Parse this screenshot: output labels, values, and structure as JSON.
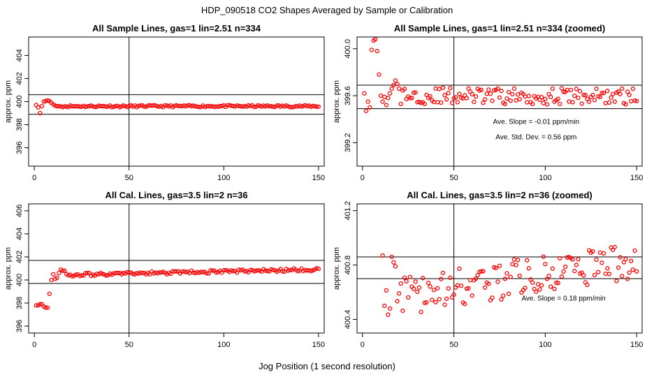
{
  "figure": {
    "title": "HDP_090518  CO2 Shapes Averaged by Sample or Calibration",
    "xlabel": "Jog Position (1 second resolution)"
  },
  "chart_data": [
    {
      "type": "scatter",
      "title": "All Sample Lines, gas=1 lin=2.51 n=334",
      "ylabel": "approx. ppm",
      "xlim": [
        -3,
        153
      ],
      "ylim": [
        394.4,
        405.6
      ],
      "xticks": [
        0,
        50,
        100,
        150
      ],
      "yticks": [
        396,
        398,
        400,
        402,
        404
      ],
      "hlines": [
        400.6,
        398.9
      ],
      "vline": 50,
      "marker_color": "#ff0000",
      "annotations": [],
      "series": [
        {
          "points": []
        }
      ]
    },
    {
      "type": "scatter",
      "title": "All Sample Lines, gas=1 lin=2.51 n=334 (zoomed)",
      "ylabel": "approx. ppm",
      "xlim": [
        -3,
        153
      ],
      "ylim": [
        399.0,
        400.1
      ],
      "xticks": [
        0,
        50,
        100,
        150
      ],
      "yticks": [
        399.2,
        399.6,
        400.0
      ],
      "hlines": [
        399.69,
        399.49
      ],
      "vline": 50,
      "marker_color": "#ff0000",
      "annotations": [
        {
          "text": "Ave. Slope =  -0.01  ppm/min",
          "x": 95,
          "y": 399.36
        },
        {
          "text": "Ave. Std. Dev. =  0.56  ppm",
          "x": 95,
          "y": 399.23
        }
      ],
      "series": [
        {
          "points": []
        }
      ]
    },
    {
      "type": "scatter",
      "title": "All Cal. Lines, gas=3.5 lin=2 n=36",
      "ylabel": "approx. ppm",
      "xlim": [
        -3,
        153
      ],
      "ylim": [
        395.4,
        406.6
      ],
      "xticks": [
        0,
        50,
        100,
        150
      ],
      "yticks": [
        396,
        398,
        400,
        402,
        404,
        406
      ],
      "hlines": [
        401.7,
        399.7
      ],
      "vline": 50,
      "marker_color": "#ff0000",
      "annotations": [],
      "series": [
        {
          "points": []
        }
      ]
    },
    {
      "type": "scatter",
      "title": "All Cal. Lines, gas=3.5 lin=2 n=36 (zoomed)",
      "ylabel": "approx. ppm",
      "xlim": [
        -3,
        153
      ],
      "ylim": [
        400.3,
        401.25
      ],
      "xticks": [
        0,
        50,
        100,
        150
      ],
      "yticks": [
        400.4,
        400.8,
        401.2
      ],
      "hlines": [
        400.86,
        400.7
      ],
      "vline": 50,
      "marker_color": "#ff0000",
      "annotations": [
        {
          "text": "Ave. Slope =  0.18  ppm/min",
          "x": 110,
          "y": 400.54
        }
      ],
      "series": [
        {
          "points": []
        }
      ]
    }
  ],
  "tick_format": {
    "0": 0,
    "1": 1,
    "2": 0,
    "3": 1
  }
}
